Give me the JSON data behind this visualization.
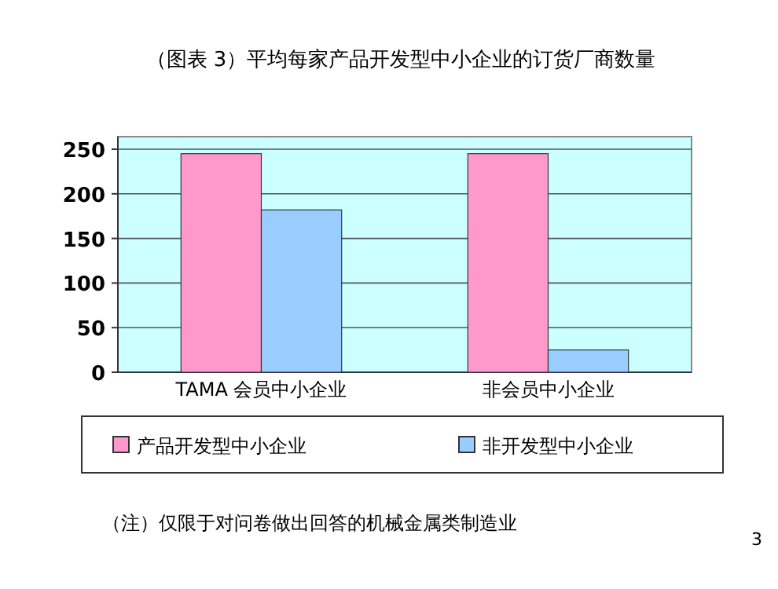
{
  "chart_data": {
    "type": "bar",
    "title": "（图表 3）平均每家产品开发型中小企业的订货厂商数量",
    "categories": [
      "TAMA 会员中小企业",
      "非会员中小企业"
    ],
    "series": [
      {
        "name": "产品开发型中小企业",
        "color": "#ff99cc",
        "values": [
          245,
          245
        ]
      },
      {
        "name": "非开发型中小企业",
        "color": "#99ccff",
        "values": [
          182,
          25
        ]
      }
    ],
    "ylim": [
      0,
      250
    ],
    "yticks": [
      0,
      50,
      100,
      150,
      200,
      250
    ],
    "grid": "y",
    "legend": "bottom",
    "annotations": [
      "（注）仅限于对问卷做出回答的机械金属类制造业",
      "3"
    ]
  }
}
